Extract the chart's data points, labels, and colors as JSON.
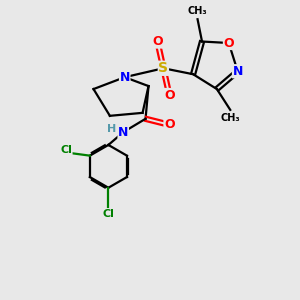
{
  "background_color": "#e8e8e8",
  "bond_color": "black",
  "atom_colors": {
    "N": "blue",
    "O": "red",
    "S": "#ccaa00",
    "Cl": "green",
    "H": "#5599aa",
    "C": "black"
  }
}
